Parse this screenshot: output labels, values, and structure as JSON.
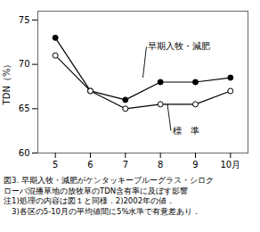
{
  "chart_data": {
    "type": "line",
    "x": [
      5,
      6,
      7,
      8,
      9,
      10
    ],
    "xlim": [
      4.5,
      10.5
    ],
    "xticks": [
      5,
      6,
      7,
      8,
      9,
      {
        "value": 10,
        "label": "10月"
      }
    ],
    "ylim": [
      60,
      76
    ],
    "yticks": [
      60,
      65,
      70,
      75
    ],
    "ylabel": "TDN（%）",
    "series": [
      {
        "name": "早期入牧・減肥",
        "color": "#000000",
        "marker": "circle_filled",
        "values": [
          73.0,
          67.0,
          66.0,
          68.0,
          68.0,
          68.5
        ]
      },
      {
        "name": "標　準",
        "color": "#000000",
        "marker": "circle_open",
        "values": [
          71.0,
          67.0,
          65.0,
          65.5,
          65.5,
          67.0
        ]
      }
    ],
    "annotations": [
      {
        "text": "早期入牧・減肥",
        "x": 7.5,
        "y": 68.5,
        "text_x": 7.6,
        "text_y": 72.0
      },
      {
        "text": "標　準",
        "x": 8.2,
        "y": 65.5,
        "text_x": 8.3,
        "text_y": 62.5
      }
    ],
    "caption": [
      "図3. 早期入牧・減肥がケンタッキーブルーグラス・シロク",
      "ローバ混播草地の放牧草のTDN含有率に及ぼす影響",
      "注1)処理の内容は図１と同様．2)2002年の値．",
      "　3)各区の5-10月の平均値間に5%水準で有意差あり．"
    ]
  }
}
